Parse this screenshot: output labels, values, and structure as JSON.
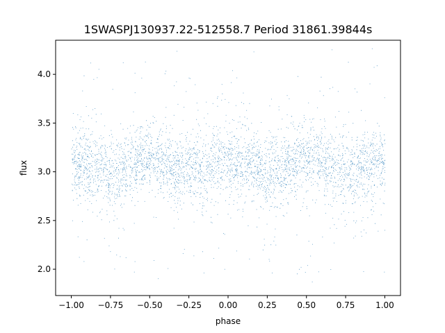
{
  "chart_data": {
    "type": "scatter",
    "title": "1SWASPJ130937.22-512558.7 Period 31861.39844s",
    "xlabel": "phase",
    "ylabel": "flux",
    "xlim": [
      -1.1,
      1.1
    ],
    "ylim": [
      1.73,
      4.35
    ],
    "xticks": [
      -1.0,
      -0.75,
      -0.5,
      -0.25,
      0.0,
      0.25,
      0.5,
      0.75,
      1.0
    ],
    "xtick_labels": [
      "−1.00",
      "−0.75",
      "−0.50",
      "−0.25",
      "0.00",
      "0.25",
      "0.50",
      "0.75",
      "1.00"
    ],
    "yticks": [
      2.0,
      2.5,
      3.0,
      3.5,
      4.0
    ],
    "ytick_labels": [
      "2.0",
      "2.5",
      "3.0",
      "3.5",
      "4.0"
    ],
    "grid": false,
    "marker_color": "#1f77b4",
    "x_range": [
      -1.0,
      1.0
    ],
    "y_range_observed": [
      1.85,
      4.28
    ],
    "phase_profile": {
      "description_phase_points": [
        -1.0,
        -0.75,
        -0.5,
        -0.25,
        0.0,
        0.25,
        0.5,
        0.75,
        1.0
      ],
      "median_flux": [
        3.1,
        3.0,
        3.15,
        3.0,
        3.1,
        3.0,
        3.15,
        3.0,
        3.1
      ]
    },
    "series": [
      {
        "x_min": -1.0,
        "x_max": 1.0
      }
    ]
  }
}
